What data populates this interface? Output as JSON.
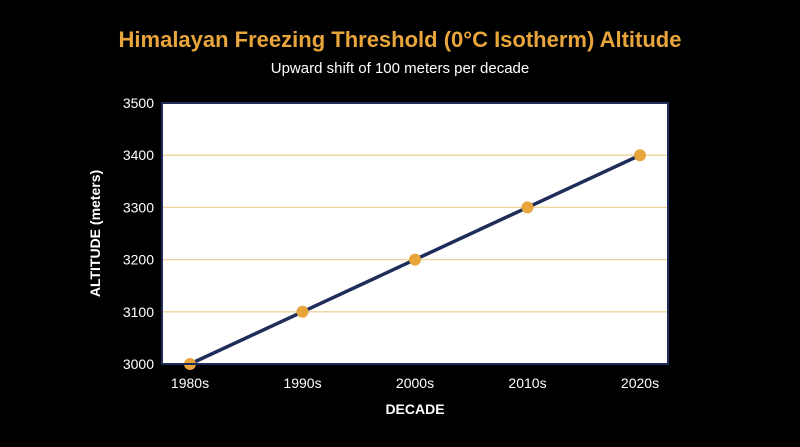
{
  "chart_data": {
    "type": "line",
    "title": "Himalayan Freezing Threshold (0°C Isotherm) Altitude",
    "subtitle": "Upward shift of 100 meters per decade",
    "xlabel": "DECADE",
    "ylabel": "ALTITUDE (meters)",
    "categories": [
      "1980s",
      "1990s",
      "2000s",
      "2010s",
      "2020s"
    ],
    "series": [
      {
        "values": [
          3000,
          3100,
          3200,
          3300,
          3400
        ]
      }
    ],
    "ylim": [
      3000,
      3500
    ],
    "yticks": [
      "3000",
      "3100",
      "3200",
      "3300",
      "3400",
      "3500"
    ],
    "grid": "horizontal",
    "colors": {
      "title": "#E8A53C",
      "line": "#1F2D5A",
      "marker": "#E8A53C",
      "grid": "#EFD49C",
      "plot_background": "#FFFFFF",
      "plot_border": "#1F2D5A",
      "axis_text": "#FFFFFF"
    }
  }
}
